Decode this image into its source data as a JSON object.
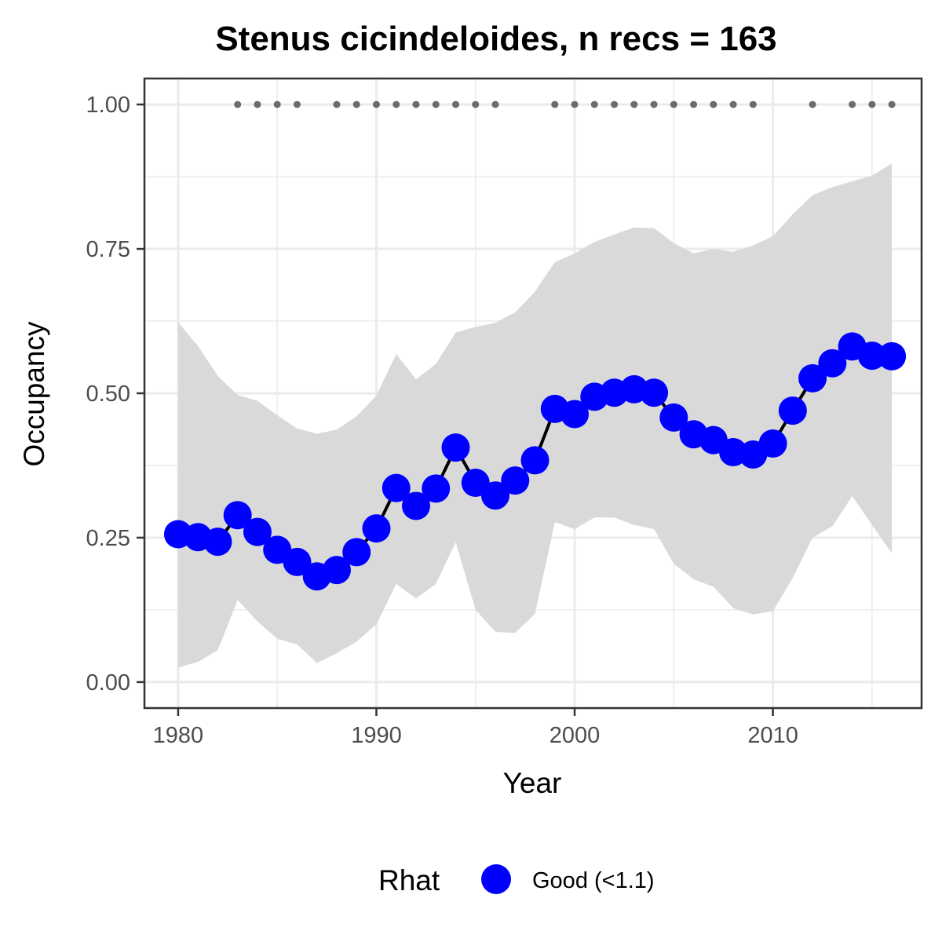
{
  "chart_data": {
    "type": "line",
    "title": "Stenus cicindeloides, n recs = 163",
    "xlabel": "Year",
    "ylabel": "Occupancy",
    "xlim": [
      1978.3,
      2017.5
    ],
    "ylim": [
      -0.045,
      1.045
    ],
    "x_ticks": [
      1980,
      1990,
      2000,
      2010
    ],
    "x_tick_labels": [
      "1980",
      "1990",
      "2000",
      "2010"
    ],
    "y_ticks": [
      0,
      0.25,
      0.5,
      0.75,
      1.0
    ],
    "y_tick_labels": [
      "0.00",
      "0.25",
      "0.50",
      "0.75",
      "1.00"
    ],
    "grid": true,
    "legend": {
      "title": "Rhat",
      "position": "bottom",
      "entries": [
        {
          "label": "Good (<1.1)",
          "color": "#0000ff"
        }
      ]
    },
    "series": [
      {
        "x": [
          1980,
          1981,
          1982,
          1983,
          1984,
          1985,
          1986,
          1987,
          1988,
          1989,
          1990,
          1991,
          1992,
          1993,
          1994,
          1995,
          1996,
          1997,
          1998,
          1999,
          2000,
          2001,
          2002,
          2003,
          2004,
          2005,
          2006,
          2007,
          2008,
          2009,
          2010,
          2011,
          2012,
          2013,
          2014,
          2015,
          2016
        ],
        "y": [
          0.256,
          0.251,
          0.243,
          0.289,
          0.26,
          0.229,
          0.208,
          0.183,
          0.194,
          0.225,
          0.266,
          0.336,
          0.305,
          0.335,
          0.406,
          0.345,
          0.323,
          0.349,
          0.384,
          0.473,
          0.464,
          0.494,
          0.501,
          0.507,
          0.501,
          0.458,
          0.429,
          0.419,
          0.398,
          0.394,
          0.413,
          0.47,
          0.526,
          0.552,
          0.581,
          0.565,
          0.564
        ],
        "lower": [
          0.025,
          0.035,
          0.055,
          0.142,
          0.105,
          0.075,
          0.065,
          0.033,
          0.05,
          0.07,
          0.1,
          0.17,
          0.145,
          0.17,
          0.242,
          0.125,
          0.087,
          0.085,
          0.118,
          0.277,
          0.265,
          0.285,
          0.285,
          0.272,
          0.265,
          0.205,
          0.178,
          0.165,
          0.128,
          0.117,
          0.123,
          0.18,
          0.25,
          0.27,
          0.322,
          0.272,
          0.223
        ],
        "upper": [
          0.623,
          0.582,
          0.53,
          0.497,
          0.487,
          0.462,
          0.439,
          0.43,
          0.437,
          0.46,
          0.496,
          0.568,
          0.524,
          0.551,
          0.605,
          0.615,
          0.622,
          0.64,
          0.676,
          0.727,
          0.742,
          0.762,
          0.775,
          0.787,
          0.786,
          0.76,
          0.742,
          0.75,
          0.745,
          0.756,
          0.772,
          0.81,
          0.843,
          0.857,
          0.867,
          0.877,
          0.898
        ]
      }
    ],
    "record_years": [
      1983,
      1984,
      1985,
      1986,
      1988,
      1989,
      1990,
      1991,
      1992,
      1993,
      1994,
      1995,
      1996,
      1999,
      2000,
      2001,
      2002,
      2003,
      2004,
      2005,
      2006,
      2007,
      2008,
      2009,
      2012,
      2014,
      2015,
      2016
    ],
    "record_marker_y": 1.0,
    "colors": {
      "ribbon": "#d9d9d9",
      "line": "#000000",
      "point": "#0000ff",
      "record": "#6b6b6b",
      "grid": "#ebebeb",
      "panel_border": "#333333",
      "background": "#ffffff"
    }
  }
}
